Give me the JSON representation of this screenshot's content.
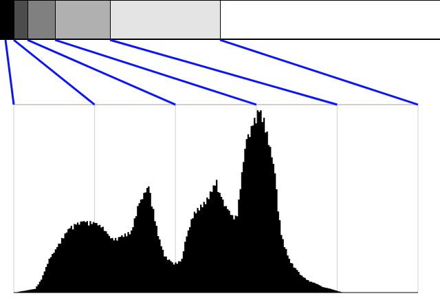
{
  "bands": [
    {
      "from": 0,
      "to": 8,
      "color": "#000000"
    },
    {
      "from": 8,
      "to": 16,
      "color": "#4c4c4c"
    },
    {
      "from": 16,
      "to": 32,
      "color": "#808080"
    },
    {
      "from": 32,
      "to": 64,
      "color": "#b0b0b0"
    },
    {
      "from": 64,
      "to": 128,
      "color": "#e4e4e4"
    },
    {
      "from": 128,
      "to": 256,
      "color": "#ffffff"
    }
  ],
  "connector_color": "#0a14ff",
  "grid_color": "#d0cfc8",
  "chart_data": {
    "type": "area",
    "xlim": [
      0,
      255
    ],
    "ylim": [
      0,
      100
    ],
    "grid": true,
    "fill_color": "#000000",
    "points": [
      [
        0,
        0
      ],
      [
        13,
        2
      ],
      [
        17,
        7
      ],
      [
        22,
        18
      ],
      [
        26,
        23
      ],
      [
        30,
        29
      ],
      [
        35,
        35
      ],
      [
        39,
        37
      ],
      [
        43,
        38
      ],
      [
        48,
        38
      ],
      [
        52,
        37
      ],
      [
        56,
        35
      ],
      [
        61,
        29
      ],
      [
        65,
        29
      ],
      [
        69,
        31
      ],
      [
        74,
        33
      ],
      [
        78,
        46
      ],
      [
        82,
        53
      ],
      [
        85,
        57
      ],
      [
        87,
        49
      ],
      [
        91,
        31
      ],
      [
        95,
        20
      ],
      [
        100,
        16
      ],
      [
        103,
        16
      ],
      [
        106,
        18
      ],
      [
        108,
        27
      ],
      [
        113,
        42
      ],
      [
        117,
        46
      ],
      [
        121,
        49
      ],
      [
        126,
        57
      ],
      [
        128,
        60
      ],
      [
        130,
        53
      ],
      [
        134,
        46
      ],
      [
        139,
        40
      ],
      [
        141,
        42
      ],
      [
        143,
        57
      ],
      [
        145,
        71
      ],
      [
        147,
        82
      ],
      [
        152,
        93
      ],
      [
        155,
        99
      ],
      [
        158,
        93
      ],
      [
        161,
        82
      ],
      [
        165,
        64
      ],
      [
        167,
        46
      ],
      [
        169,
        31
      ],
      [
        174,
        18
      ],
      [
        178,
        13
      ],
      [
        182,
        9
      ],
      [
        187,
        6
      ],
      [
        191,
        5
      ],
      [
        195,
        3
      ],
      [
        200,
        2
      ],
      [
        204,
        1
      ],
      [
        208,
        0
      ],
      [
        255,
        0
      ]
    ]
  }
}
